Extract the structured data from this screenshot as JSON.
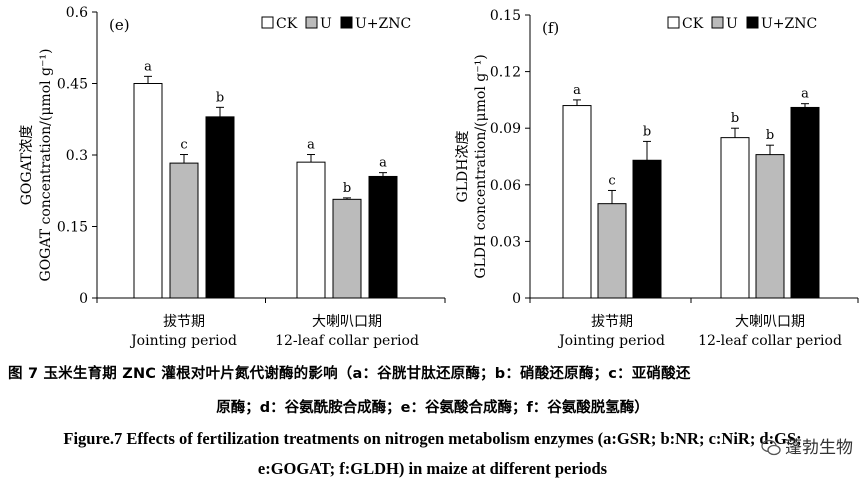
{
  "chart_data": [
    {
      "type": "bar",
      "panel_label": "(e)",
      "ylabel_cn": "GOGAT浓度",
      "ylabel_en": "GOGAT concentration/(μmol g⁻¹)",
      "ylim": [
        0,
        0.6
      ],
      "yticks": [
        "0",
        "0.15",
        "0.3",
        "0.45",
        "0.6"
      ],
      "categories": [
        {
          "cn": "拔节期",
          "en": "Jointing period"
        },
        {
          "cn": "大喇叭口期",
          "en": "12-leaf collar period"
        }
      ],
      "series": [
        {
          "name": "CK",
          "color": "#ffffff",
          "values": [
            0.45,
            0.285
          ],
          "errors": [
            0.015,
            0.016
          ],
          "letters": [
            "a",
            "a"
          ]
        },
        {
          "name": "U",
          "color": "#bbbbbb",
          "values": [
            0.283,
            0.207
          ],
          "errors": [
            0.018,
            0.003
          ],
          "letters": [
            "c",
            "b"
          ]
        },
        {
          "name": "U+ZNC",
          "color": "#000000",
          "values": [
            0.38,
            0.255
          ],
          "errors": [
            0.02,
            0.008
          ],
          "letters": [
            "b",
            "a"
          ]
        }
      ]
    },
    {
      "type": "bar",
      "panel_label": "(f)",
      "ylabel_cn": "GLDH浓度",
      "ylabel_en": "GLDH concentration/(μmol g⁻¹)",
      "ylim": [
        0,
        0.15
      ],
      "yticks": [
        "0",
        "0.03",
        "0.06",
        "0.09",
        "0.12",
        "0.15"
      ],
      "categories": [
        {
          "cn": "拔节期",
          "en": "Jointing period"
        },
        {
          "cn": "大喇叭口期",
          "en": "12-leaf collar period"
        }
      ],
      "series": [
        {
          "name": "CK",
          "color": "#ffffff",
          "values": [
            0.102,
            0.085
          ],
          "errors": [
            0.003,
            0.005
          ],
          "letters": [
            "a",
            "b"
          ]
        },
        {
          "name": "U",
          "color": "#bbbbbb",
          "values": [
            0.05,
            0.076
          ],
          "errors": [
            0.007,
            0.005
          ],
          "letters": [
            "c",
            "b"
          ]
        },
        {
          "name": "U+ZNC",
          "color": "#000000",
          "values": [
            0.073,
            0.101
          ],
          "errors": [
            0.01,
            0.002
          ],
          "letters": [
            "b",
            "a"
          ]
        }
      ]
    }
  ],
  "caption": {
    "cn_line1": "图 7 玉米生育期 ZNC 灌根对叶片氮代谢酶的影响（a：谷胱甘肽还原酶；b：硝酸还原酶；c：亚硝酸还",
    "cn_line2": "原酶；d：谷氨酰胺合成酶；e：谷氨酸合成酶；f：谷氨酸脱氢酶）",
    "en_line1": "Figure.7 Effects of fertilization treatments on nitrogen metabolism enzymes (a:GSR; b:NR; c:NiR; d:GS;",
    "en_line2": "e:GOGAT; f:GLDH) in maize at different periods"
  },
  "watermark": "蓬勃生物"
}
